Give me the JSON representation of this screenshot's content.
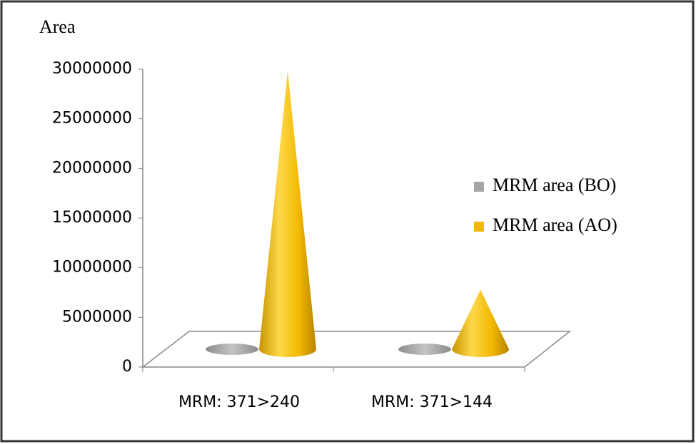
{
  "chart_data": {
    "type": "cone3d",
    "y_label": "Area",
    "categories": [
      "MRM: 371>240",
      "MRM: 371>144"
    ],
    "series": [
      {
        "name": "MRM area (BO)",
        "color": "#a6a6a6",
        "values": [
          0,
          0
        ]
      },
      {
        "name": "MRM area (AO)",
        "color": "#f2b800",
        "values": [
          28000000,
          6000000
        ]
      }
    ],
    "ylim": [
      0,
      30000000
    ],
    "yticks": [
      0,
      5000000,
      10000000,
      15000000,
      20000000,
      25000000,
      30000000
    ],
    "legend": "right"
  }
}
